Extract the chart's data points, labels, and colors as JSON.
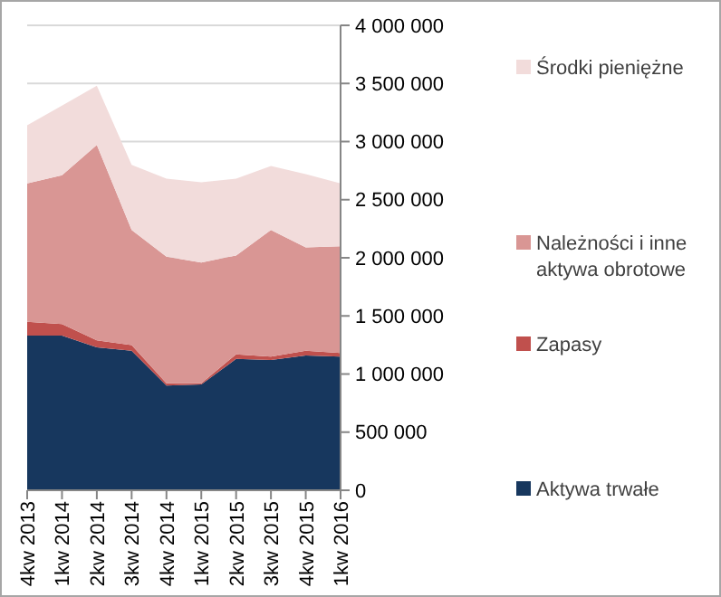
{
  "chart_data": {
    "type": "area",
    "stacked": true,
    "categories": [
      "4kw 2013",
      "1kw 2014",
      "2kw 2014",
      "3kw 2014",
      "4kw 2014",
      "1kw 2015",
      "2kw 2015",
      "3kw 2015",
      "4kw 2015",
      "1kw 2016"
    ],
    "series": [
      {
        "name": "Aktywa trwałe",
        "color": "#17375e",
        "values": [
          1330000,
          1330000,
          1230000,
          1200000,
          900000,
          910000,
          1130000,
          1120000,
          1160000,
          1150000
        ]
      },
      {
        "name": "Zapasy",
        "color": "#c0504d",
        "values": [
          120000,
          100000,
          60000,
          50000,
          20000,
          10000,
          40000,
          30000,
          40000,
          30000
        ]
      },
      {
        "name": "Należności i inne aktywa obrotowe",
        "color": "#d99694",
        "values": [
          1190000,
          1280000,
          1680000,
          990000,
          1090000,
          1040000,
          850000,
          1090000,
          890000,
          920000
        ]
      },
      {
        "name": "Środki pieniężne",
        "color": "#f2dcdb",
        "values": [
          500000,
          600000,
          510000,
          560000,
          670000,
          690000,
          660000,
          550000,
          630000,
          540000
        ]
      }
    ],
    "ylim": [
      0,
      4000000
    ],
    "yticks": [
      {
        "value": 0,
        "label": "0"
      },
      {
        "value": 500000,
        "label": "500 000"
      },
      {
        "value": 1000000,
        "label": "1 000 000"
      },
      {
        "value": 1500000,
        "label": "1 500 000"
      },
      {
        "value": 2000000,
        "label": "2 000 000"
      },
      {
        "value": 2500000,
        "label": "2 500 000"
      },
      {
        "value": 3000000,
        "label": "3 000 000"
      },
      {
        "value": 3500000,
        "label": "3 500 000"
      },
      {
        "value": 4000000,
        "label": "4 000 000"
      }
    ],
    "grid": "y",
    "legend": "right"
  }
}
